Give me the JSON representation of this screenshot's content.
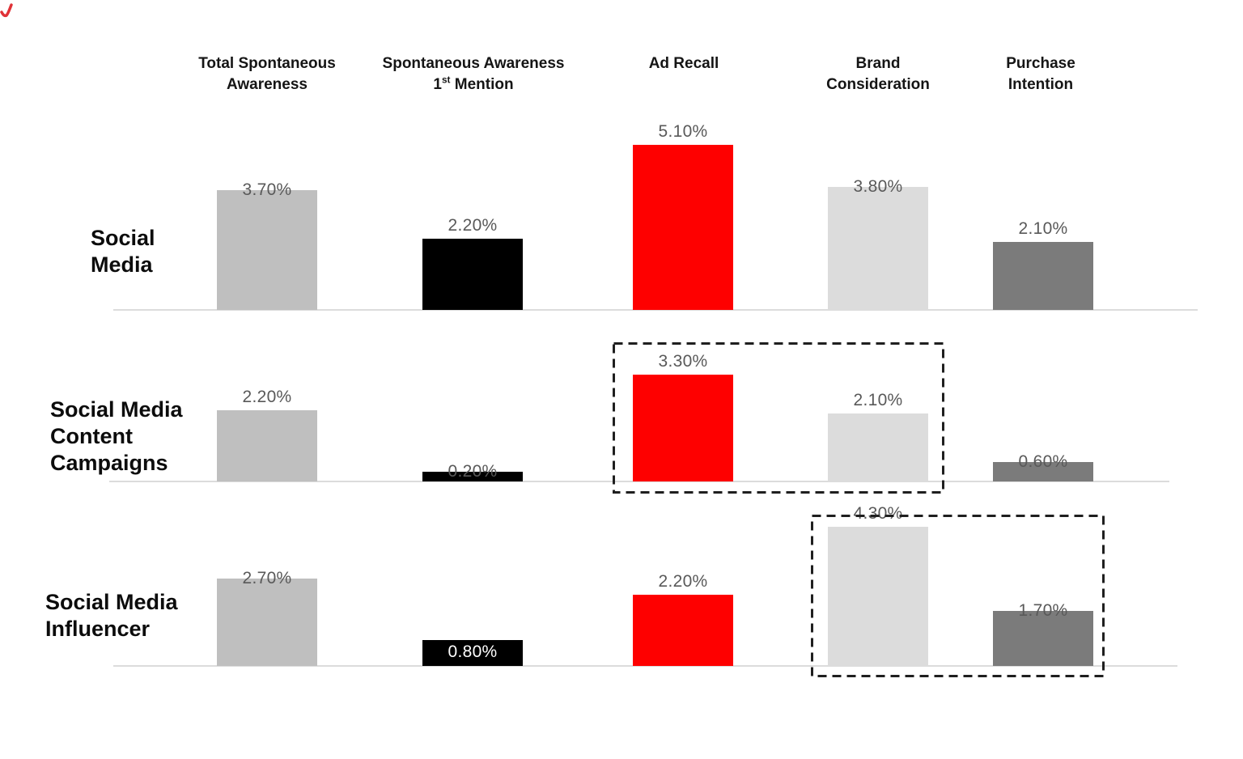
{
  "chart_data": {
    "type": "bar",
    "title": "",
    "xlabel": "",
    "ylabel": "",
    "unit": "%",
    "grid": false,
    "legend": false,
    "categories": [
      "Total Spontaneous Awareness",
      "Spontaneous Awareness 1st Mention",
      "Ad Recall",
      "Brand Consideration",
      "Purchase Intention"
    ],
    "category_label_lines": [
      [
        "Total Spontaneous",
        "Awareness"
      ],
      [
        "Spontaneous Awareness",
        "1st Mention"
      ],
      [
        "Ad Recall"
      ],
      [
        "Brand",
        "Consideration"
      ],
      [
        "Purchase",
        "Intention"
      ]
    ],
    "series": [
      {
        "name": "Social Media",
        "name_lines": [
          "Social",
          "Media"
        ],
        "values": [
          3.7,
          2.2,
          5.1,
          3.8,
          2.1
        ],
        "value_labels": [
          "3.70%",
          "2.20%",
          "5.10%",
          "3.80%",
          "2.10%"
        ]
      },
      {
        "name": "Social Media Content Campaigns",
        "name_lines": [
          "Social Media",
          "Content",
          "Campaigns"
        ],
        "values": [
          2.2,
          0.2,
          3.3,
          2.1,
          0.6
        ],
        "value_labels": [
          "2.20%",
          "0.20%",
          "3.30%",
          "2.10%",
          "0.60%"
        ]
      },
      {
        "name": "Social Media Influencer",
        "name_lines": [
          "Social Media",
          "Influencer"
        ],
        "values": [
          2.7,
          0.8,
          2.2,
          4.3,
          1.7
        ],
        "value_labels": [
          "2.70%",
          "0.80%",
          "2.20%",
          "4.30%",
          "1.70%"
        ]
      }
    ],
    "bar_colors": [
      "#bfbfbf",
      "#000000",
      "#fe0000",
      "#dcdcdc",
      "#7b7b7b"
    ],
    "value_label_color": "#595959",
    "value_label_positions": [
      [
        "overlap",
        "above",
        "above",
        "overlap",
        "above"
      ],
      [
        "above",
        "overlap",
        "above",
        "above",
        "overlap"
      ],
      [
        "overlap",
        "inside",
        "above",
        "above",
        "overlap"
      ]
    ],
    "highlight_boxes": [
      {
        "series": "Social Media Content Campaigns",
        "categories": [
          "Ad Recall",
          "Brand Consideration"
        ]
      },
      {
        "series": "Social Media Influencer",
        "categories": [
          "Brand Consideration",
          "Purchase Intention"
        ]
      }
    ],
    "axis_baseline_color": "#dcdcdc",
    "highlight_border_color": "#1f1f1f"
  }
}
